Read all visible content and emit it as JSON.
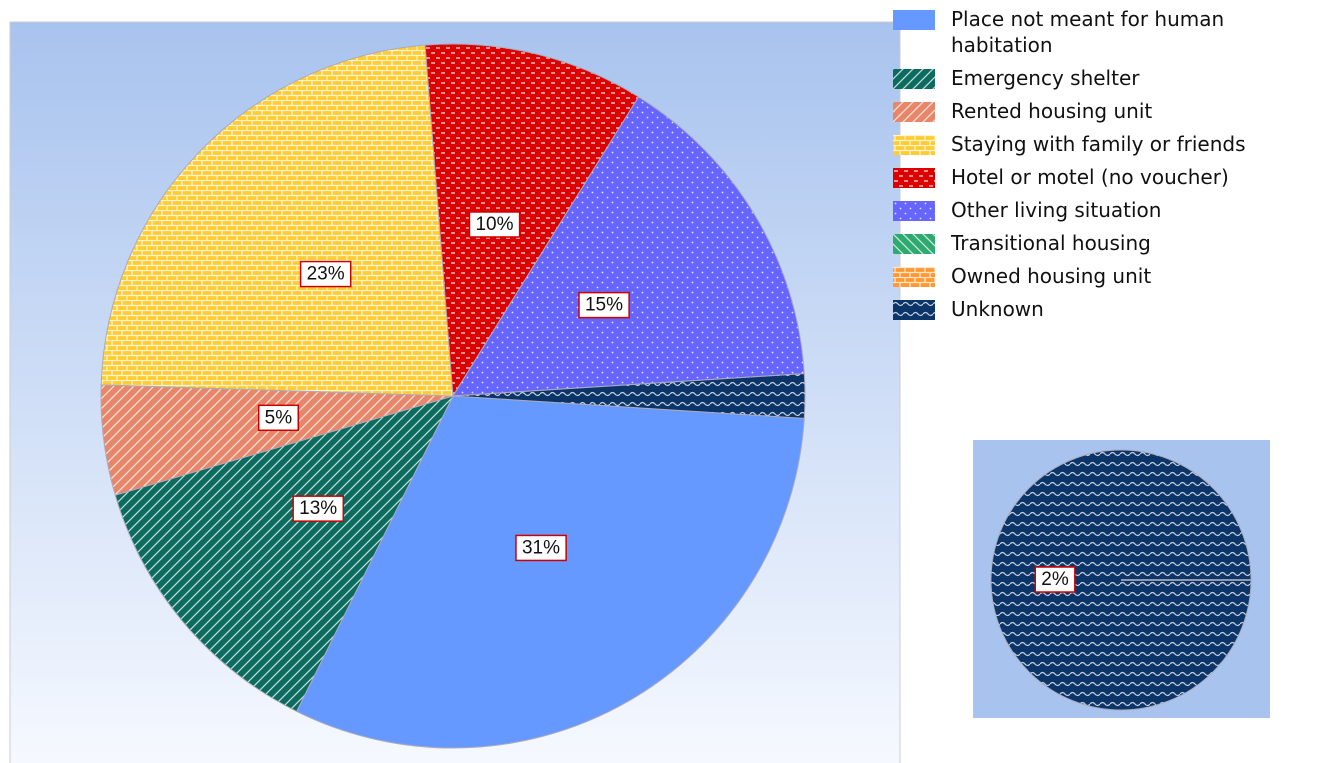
{
  "chart_data": {
    "type": "pie",
    "categories": [
      "Place not meant for human habitation",
      "Emergency shelter",
      "Rented housing unit",
      "Staying with family or friends",
      "Hotel or motel (no voucher)",
      "Other living situation",
      "Transitional housing",
      "Owned housing unit",
      "Unknown"
    ],
    "values": [
      31,
      13,
      5,
      23,
      10,
      15,
      0,
      0,
      2
    ],
    "value_labels": [
      "31%",
      "13%",
      "5%",
      "23%",
      "10%",
      "15%",
      null,
      null,
      "2%"
    ],
    "colors": [
      "#6699ff",
      "#0b6b5f",
      "#e8866a",
      "#ffcc33",
      "#dd0000",
      "#6666ff",
      "#2eaa70",
      "#ff9933",
      "#0b3468"
    ],
    "patterns": [
      "none",
      "diagonal",
      "diagonal",
      "brick",
      "dash",
      "dots",
      "diagonal-back",
      "brick",
      "wave"
    ],
    "legend": "right"
  }
}
